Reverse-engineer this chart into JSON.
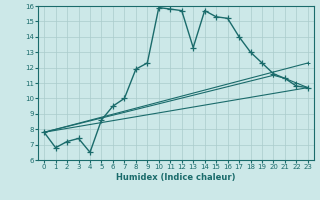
{
  "xlabel": "Humidex (Indice chaleur)",
  "ylabel": "",
  "bg_color": "#cce8e8",
  "line_color": "#1a6b6b",
  "grid_color": "#aacccc",
  "xlim": [
    -0.5,
    23.5
  ],
  "ylim": [
    6,
    16
  ],
  "xticks": [
    0,
    1,
    2,
    3,
    4,
    5,
    6,
    7,
    8,
    9,
    10,
    11,
    12,
    13,
    14,
    15,
    16,
    17,
    18,
    19,
    20,
    21,
    22,
    23
  ],
  "yticks": [
    6,
    7,
    8,
    9,
    10,
    11,
    12,
    13,
    14,
    15,
    16
  ],
  "line_main": {
    "x": [
      0,
      1,
      2,
      3,
      4,
      5,
      6,
      7,
      8,
      9,
      10,
      11,
      12,
      13,
      14,
      15,
      16,
      17,
      18,
      19,
      20,
      21,
      22,
      23
    ],
    "y": [
      7.8,
      6.8,
      7.2,
      7.4,
      6.5,
      8.6,
      9.5,
      10.0,
      11.9,
      12.3,
      15.9,
      15.8,
      15.7,
      13.3,
      15.7,
      15.3,
      15.2,
      14.0,
      13.0,
      12.3,
      11.6,
      11.3,
      10.8,
      10.7
    ]
  },
  "line_fan": [
    {
      "x": [
        0,
        23
      ],
      "y": [
        7.8,
        12.3
      ]
    },
    {
      "x": [
        0,
        20,
        21,
        22,
        23
      ],
      "y": [
        7.8,
        11.5,
        11.3,
        11.0,
        10.7
      ]
    },
    {
      "x": [
        0,
        23
      ],
      "y": [
        7.8,
        10.7
      ]
    }
  ]
}
